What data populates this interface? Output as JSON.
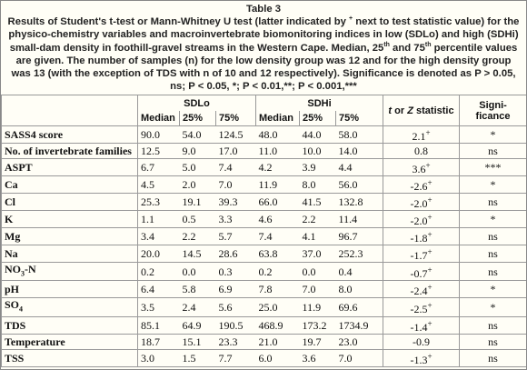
{
  "caption": {
    "label": "Table 3",
    "segments": [
      {
        "text": "Results of Student's t-test or Mann-Whitney U test (latter indicated by "
      },
      {
        "text": "+",
        "sup": true
      },
      {
        "text": " next to test statistic value) for the physico-chemistry variables and macroinvertebrate biomonitoring indices in low (SDLo) and high (SDHi) small-dam density in foothill-gravel streams in the Western Cape. Median, 25"
      },
      {
        "text": "th",
        "sup": true
      },
      {
        "text": " and 75"
      },
      {
        "text": "th",
        "sup": true
      },
      {
        "text": " percentile values are given.  The number of samples (n) for the low density group was 12 and for the high density group was 13 (with the exception of TDS with n of 10 and 12 respectively). Significance is denoted as P > 0.05, ns; P < 0.05, *; P < 0.01,**; P < 0.001,***"
      }
    ]
  },
  "table": {
    "groups": [
      "SDLo",
      "SDHi"
    ],
    "subheaders": [
      "Median",
      "25%",
      "75%",
      "Median",
      "25%",
      "75%"
    ],
    "stat_header": [
      {
        "text": "t",
        "italic": true
      },
      {
        "text": " or "
      },
      {
        "text": "Z",
        "italic": true
      },
      {
        "text": " statistic"
      }
    ],
    "sig_header": [
      "Signi-",
      "ficance"
    ],
    "rows": [
      {
        "label": "SASS4 score",
        "sdlo": [
          "90.0",
          "54.0",
          "124.5"
        ],
        "sdhi": [
          "48.0",
          "44.0",
          "58.0"
        ],
        "stat": "2.1",
        "marker": "+",
        "sig": "*"
      },
      {
        "label": "No. of invertebrate families",
        "sdlo": [
          "12.5",
          "9.0",
          "17.0"
        ],
        "sdhi": [
          "11.0",
          "10.0",
          "14.0"
        ],
        "stat": "0.8",
        "sig": "ns"
      },
      {
        "label": "ASPT",
        "sdlo": [
          "6.7",
          "5.0",
          "7.4"
        ],
        "sdhi": [
          "4.2",
          "3.9",
          "4.4"
        ],
        "stat": "3.6",
        "marker": "+",
        "sig": "***"
      },
      {
        "label": "Ca",
        "sdlo": [
          "4.5",
          "2.0",
          "7.0"
        ],
        "sdhi": [
          "11.9",
          "8.0",
          "56.0"
        ],
        "stat": "-2.6",
        "marker": "+",
        "sig": "*"
      },
      {
        "label": "Cl",
        "sdlo": [
          "25.3",
          "19.1",
          "39.3"
        ],
        "sdhi": [
          "66.0",
          "41.5",
          "132.8"
        ],
        "stat": "-2.0",
        "marker": "+",
        "sig": "ns"
      },
      {
        "label": "K",
        "sdlo": [
          "1.1",
          "0.5",
          "3.3"
        ],
        "sdhi": [
          "4.6",
          "2.2",
          "11.4"
        ],
        "stat": "-2.0",
        "marker": "+",
        "sig": "*"
      },
      {
        "label": "Mg",
        "sdlo": [
          "3.4",
          "2.2",
          "5.7"
        ],
        "sdhi": [
          "7.4",
          "4.1",
          "96.7"
        ],
        "stat": "-1.8",
        "marker": "+",
        "sig": "ns"
      },
      {
        "label": "Na",
        "sdlo": [
          "20.0",
          "14.5",
          "28.6"
        ],
        "sdhi": [
          "63.8",
          "37.0",
          "252.3"
        ],
        "stat": "-1.7",
        "marker": "+",
        "sig": "ns"
      },
      {
        "label": "NO",
        "label_sub": "3",
        "label_tail": "-N",
        "sdlo": [
          "0.2",
          "0.0",
          "0.3"
        ],
        "sdhi": [
          "0.2",
          "0.0",
          "0.4"
        ],
        "stat": "-0.7",
        "marker": "+",
        "sig": "ns"
      },
      {
        "label": "pH",
        "sdlo": [
          "6.4",
          "5.8",
          "6.9"
        ],
        "sdhi": [
          "7.8",
          "7.0",
          "8.0"
        ],
        "stat": "-2.4",
        "marker": "+",
        "sig": "*"
      },
      {
        "label": "SO",
        "label_sub": "4",
        "sdlo": [
          "3.5",
          "2.4",
          "5.6"
        ],
        "sdhi": [
          "25.0",
          "11.9",
          "69.6"
        ],
        "stat": "-2.5",
        "marker": "+",
        "sig": "*"
      },
      {
        "label": "TDS",
        "sdlo": [
          "85.1",
          "64.9",
          "190.5"
        ],
        "sdhi": [
          "468.9",
          "173.2",
          "1734.9"
        ],
        "stat": "-1.4",
        "marker": "+",
        "sig": "ns"
      },
      {
        "label": "Temperature",
        "sdlo": [
          "18.7",
          "15.1",
          "23.3"
        ],
        "sdhi": [
          "21.0",
          "19.7",
          "23.0"
        ],
        "stat": "-0.9",
        "sig": "ns"
      },
      {
        "label": "TSS",
        "sdlo": [
          "3.0",
          "1.5",
          "7.7"
        ],
        "sdhi": [
          "6.0",
          "3.6",
          "7.0"
        ],
        "stat": "-1.3",
        "marker": "+",
        "sig": "ns"
      }
    ]
  }
}
